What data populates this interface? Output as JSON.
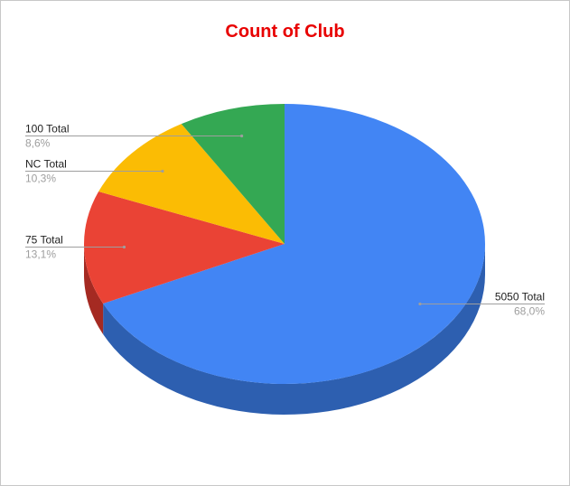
{
  "chart_data": {
    "type": "pie",
    "style": "3d",
    "title": "Count of Club",
    "title_color": "#e80000",
    "slices": [
      {
        "label": "5050 Total",
        "value": 68.0,
        "percent_text": "68,0%",
        "color": "#4285f4",
        "side_color": "#2d5fb0"
      },
      {
        "label": "75 Total",
        "value": 13.1,
        "percent_text": "13,1%",
        "color": "#ea4335",
        "side_color": "#a52a22"
      },
      {
        "label": "NC Total",
        "value": 10.3,
        "percent_text": "10,3%",
        "color": "#fbbc04",
        "side_color": "#b58700"
      },
      {
        "label": "100 Total",
        "value": 8.6,
        "percent_text": "8,6%",
        "color": "#34a853",
        "side_color": "#23783a"
      }
    ],
    "legend": "none",
    "label_color": "#222222",
    "percent_color": "#9e9e9e"
  }
}
